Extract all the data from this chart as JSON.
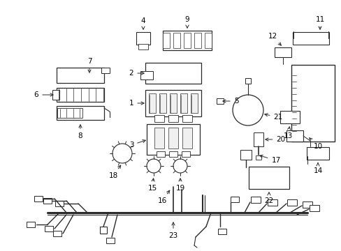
{
  "bg_color": "#ffffff",
  "line_color": "#2a2a2a",
  "text_color": "#000000",
  "figsize": [
    4.89,
    3.6
  ],
  "dpi": 100
}
